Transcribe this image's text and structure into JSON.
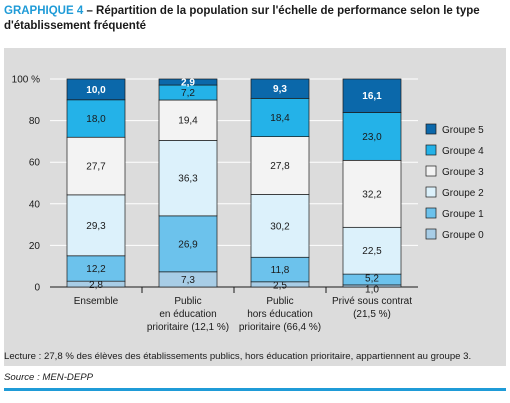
{
  "header": {
    "graph_number": "GRAPHIQUE 4",
    "title_rest": " – Répartition de la population sur l'échelle de performance selon le type d'établissement fréquenté"
  },
  "note": "Lecture : 27,8 % des élèves des établissements publics, hors éducation prioritaire, appartiennent au groupe 3.",
  "source": "Source : MEN-DEPP",
  "chart_data": {
    "type": "bar",
    "stacked": true,
    "categories": [
      [
        "Ensemble"
      ],
      [
        "Public",
        "en éducation",
        "prioritaire (12,1 %)"
      ],
      [
        "Public",
        "hors éducation",
        "prioritaire (66,4 %)"
      ],
      [
        "Privé sous contrat",
        "(21,5 %)"
      ]
    ],
    "ylim": [
      0,
      100
    ],
    "yticks": [
      {
        "value": 0,
        "label": "0"
      },
      {
        "value": 20,
        "label": "20"
      },
      {
        "value": 40,
        "label": "40"
      },
      {
        "value": 60,
        "label": "60"
      },
      {
        "value": 80,
        "label": "80"
      },
      {
        "value": 100,
        "label": "100 %"
      }
    ],
    "grid": true,
    "legend_position": "right",
    "series": [
      {
        "name": "Groupe 0",
        "color": "#a8cde6",
        "values": [
          2.8,
          7.3,
          2.5,
          1.0
        ],
        "labels": [
          "2,8",
          "7,3",
          "2,5",
          "1,0"
        ]
      },
      {
        "name": "Groupe 1",
        "color": "#6cc2ec",
        "values": [
          12.2,
          26.9,
          11.8,
          5.2
        ],
        "labels": [
          "12,2",
          "26,9",
          "11,8",
          "5,2"
        ]
      },
      {
        "name": "Groupe 2",
        "color": "#dcf1fb",
        "values": [
          29.3,
          36.3,
          30.2,
          22.5
        ],
        "labels": [
          "29,3",
          "36,3",
          "30,2",
          "22,5"
        ]
      },
      {
        "name": "Groupe 3",
        "color": "#f3f3f3",
        "values": [
          27.7,
          19.4,
          27.8,
          32.2
        ],
        "labels": [
          "27,7",
          "19,4",
          "27,8",
          "32,2"
        ]
      },
      {
        "name": "Groupe 4",
        "color": "#24b2e8",
        "values": [
          18.0,
          7.2,
          18.4,
          23.0
        ],
        "labels": [
          "18,0",
          "7,2",
          "18,4",
          "23,0"
        ]
      },
      {
        "name": "Groupe 5",
        "color": "#0b68aa",
        "values": [
          10.0,
          2.9,
          9.3,
          16.1
        ],
        "labels": [
          "10,0",
          "2,9",
          "9,3",
          "16,1"
        ]
      }
    ]
  }
}
